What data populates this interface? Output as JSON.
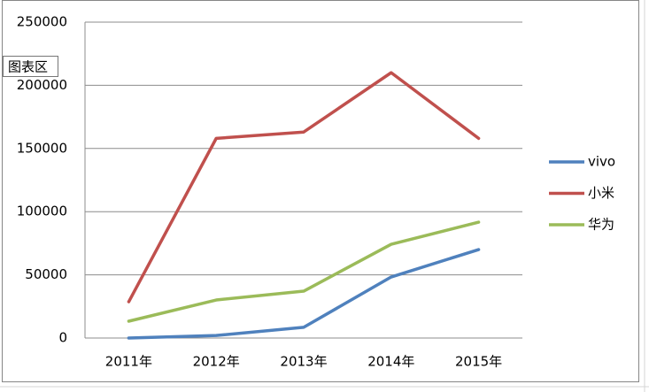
{
  "chart_data": {
    "type": "line",
    "categories": [
      "2011年",
      "2012年",
      "2013年",
      "2014年",
      "2015年"
    ],
    "series": [
      {
        "name": "vivo",
        "color": "#4f81bd",
        "values": [
          0,
          2000,
          8500,
          48300,
          70000
        ]
      },
      {
        "name": "小米",
        "color": "#c0504d",
        "values": [
          28700,
          158000,
          163000,
          210000,
          158000
        ]
      },
      {
        "name": "华为",
        "color": "#9bbb59",
        "values": [
          13300,
          30100,
          37100,
          74200,
          91700
        ]
      }
    ],
    "ylim": [
      0,
      250000
    ],
    "yticks": [
      0,
      50000,
      100000,
      150000,
      200000,
      250000
    ],
    "grid": true,
    "legend": "right"
  },
  "tooltip": "图表区"
}
